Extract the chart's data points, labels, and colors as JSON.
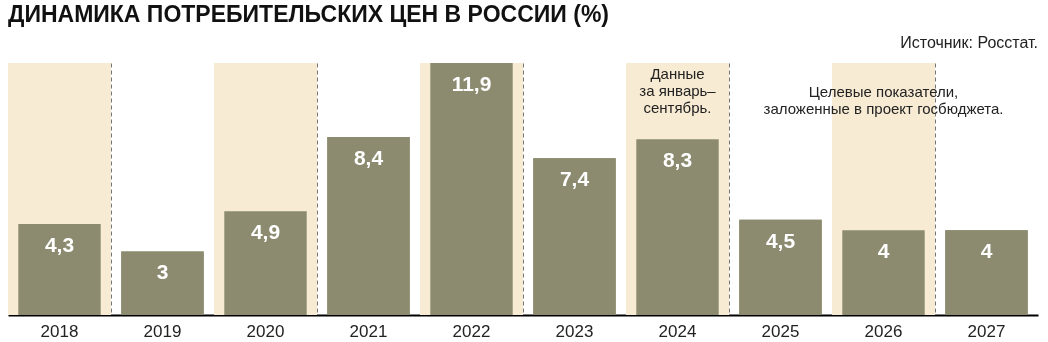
{
  "chart_data": {
    "type": "bar",
    "title": "ДИНАМИКА ПОТРЕБИТЕЛЬСКИХ ЦЕН В РОССИИ (%)",
    "categories": [
      "2018",
      "2019",
      "2020",
      "2021",
      "2022",
      "2023",
      "2024",
      "2025",
      "2026",
      "2027"
    ],
    "values": [
      4.3,
      3,
      4.9,
      8.4,
      11.9,
      7.4,
      8.3,
      4.5,
      4,
      4
    ],
    "value_labels": [
      "4,3",
      "3",
      "4,9",
      "8,4",
      "11,9",
      "7,4",
      "8,3",
      "4,5",
      "4",
      "4"
    ],
    "color": "#8c8b70",
    "grid": "x",
    "bands": [
      {
        "axis": "x",
        "from": "2018",
        "to": "2018",
        "color": "#f8ebd4"
      },
      {
        "axis": "x",
        "from": "2020",
        "to": "2020",
        "color": "#f8ebd4"
      },
      {
        "axis": "x",
        "from": "2022",
        "to": "2022",
        "color": "#f8ebd4"
      },
      {
        "axis": "x",
        "from": "2024",
        "to": "2024",
        "color": "#f8ebd4"
      },
      {
        "axis": "x",
        "from": "2026",
        "to": "2026",
        "color": "#f8ebd4"
      }
    ],
    "annotations": [
      "Источник: Росстат.",
      "Данные\nза январь–\nсентябрь.",
      "Целевые показатели,\nзаложенные в проект госбюджета."
    ]
  }
}
